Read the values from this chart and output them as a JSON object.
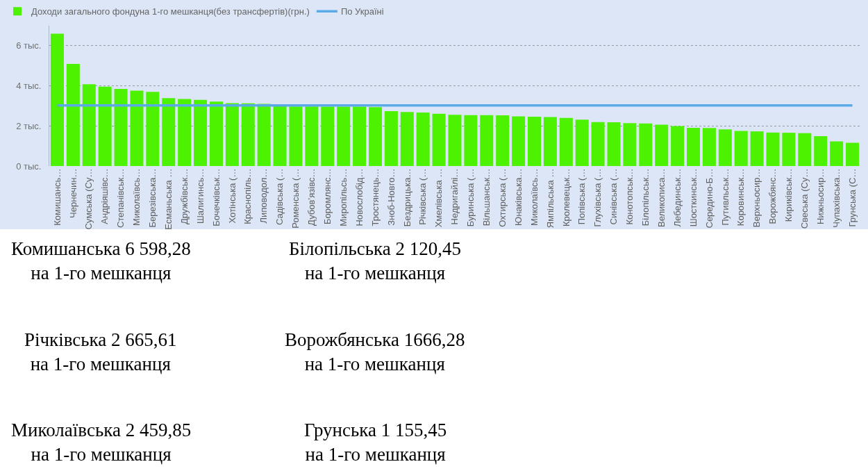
{
  "chart_data": {
    "type": "bar",
    "legend": "top left",
    "grid": "y",
    "ylim": [
      0,
      7
    ],
    "yticks": [
      {
        "value": 0,
        "label": "0 тыс."
      },
      {
        "value": 2,
        "label": "2 тыс."
      },
      {
        "value": 4,
        "label": "4 тыс."
      },
      {
        "value": 6,
        "label": "6 тыс."
      }
    ],
    "categories": [
      "Комишансь…",
      "Чернечин…",
      "Сумська (Су…",
      "Андріяшівс…",
      "Степанівськ…",
      "Миколаївсь…",
      "Березівська…",
      "Есманьська …",
      "Дружбівськ…",
      "Шалигинсь…",
      "Бочечківськ…",
      "Хотінська (…",
      "Краснопіль…",
      "Липоводол…",
      "Садівська (…",
      "Роменська (…",
      "Дубов’язівс…",
      "Боромлянс…",
      "Миропільсь…",
      "Новослобід…",
      "Тростянець…",
      "Зноб-Новго…",
      "Бездрицька…",
      "Річківська (…",
      "Хмелівська …",
      "Недригайлі…",
      "Буринська (…",
      "Вільшанськ…",
      "Охтирська (…",
      "Юнаківська…",
      "Миколаївсь…",
      "Ямпільська …",
      "Кролевецьк…",
      "Попівська (…",
      "Глухівська (…",
      "Синівська (…",
      "Конотопськ…",
      "Білопільськ…",
      "Великописа…",
      "Лебединськ…",
      "Шосткинськ…",
      "Середино-Б…",
      "Путивльськ…",
      "Коровинськ…",
      "Верхньосир…",
      "Ворожбянс…",
      "Кириківськ…",
      "Свеська (Су…",
      "Нижньосир…",
      "Чупахівська…",
      "Грунська (С…"
    ],
    "series": [
      {
        "name": "Доходи загального фондуна 1-го мешканця(без трансфертів)(грн.)",
        "color": "#4cf200",
        "values": [
          6.6,
          5.09,
          4.08,
          3.96,
          3.85,
          3.76,
          3.7,
          3.39,
          3.34,
          3.3,
          3.21,
          3.14,
          3.13,
          3.1,
          2.98,
          2.97,
          2.97,
          2.96,
          2.96,
          2.96,
          2.94,
          2.74,
          2.69,
          2.67,
          2.61,
          2.56,
          2.54,
          2.54,
          2.53,
          2.48,
          2.46,
          2.44,
          2.4,
          2.31,
          2.19,
          2.18,
          2.14,
          2.12,
          2.06,
          1.99,
          1.91,
          1.9,
          1.83,
          1.75,
          1.73,
          1.67,
          1.66,
          1.64,
          1.49,
          1.23,
          1.16
        ]
      },
      {
        "name": "По Україні",
        "type": "line",
        "color": "#5aaae8",
        "values": [
          3.02,
          3.02,
          3.02,
          3.02,
          3.02,
          3.02,
          3.02,
          3.02,
          3.02,
          3.02,
          3.02,
          3.02,
          3.02,
          3.02,
          3.02,
          3.02,
          3.02,
          3.02,
          3.02,
          3.02,
          3.02,
          3.02,
          3.02,
          3.02,
          3.02,
          3.02,
          3.02,
          3.02,
          3.02,
          3.02,
          3.02,
          3.02,
          3.02,
          3.02,
          3.02,
          3.02,
          3.02,
          3.02,
          3.02,
          3.02,
          3.02,
          3.02,
          3.02,
          3.02,
          3.02,
          3.02,
          3.02,
          3.02,
          3.02,
          3.02,
          3.02
        ]
      }
    ],
    "annotations": [
      "Комишанська 6 598,28\nна 1-го мешканця",
      "Білопільська 2 120,45\nна 1-го мешканця",
      "Річківська 2 665,61\nна 1-го мешканця",
      "Ворожбянська 1666,28\nна 1-го мешканця",
      "Миколаївська 2 459,85\nна 1-го мешканця",
      "Грунська 1 155,45\nна 1-го мешканця"
    ]
  }
}
